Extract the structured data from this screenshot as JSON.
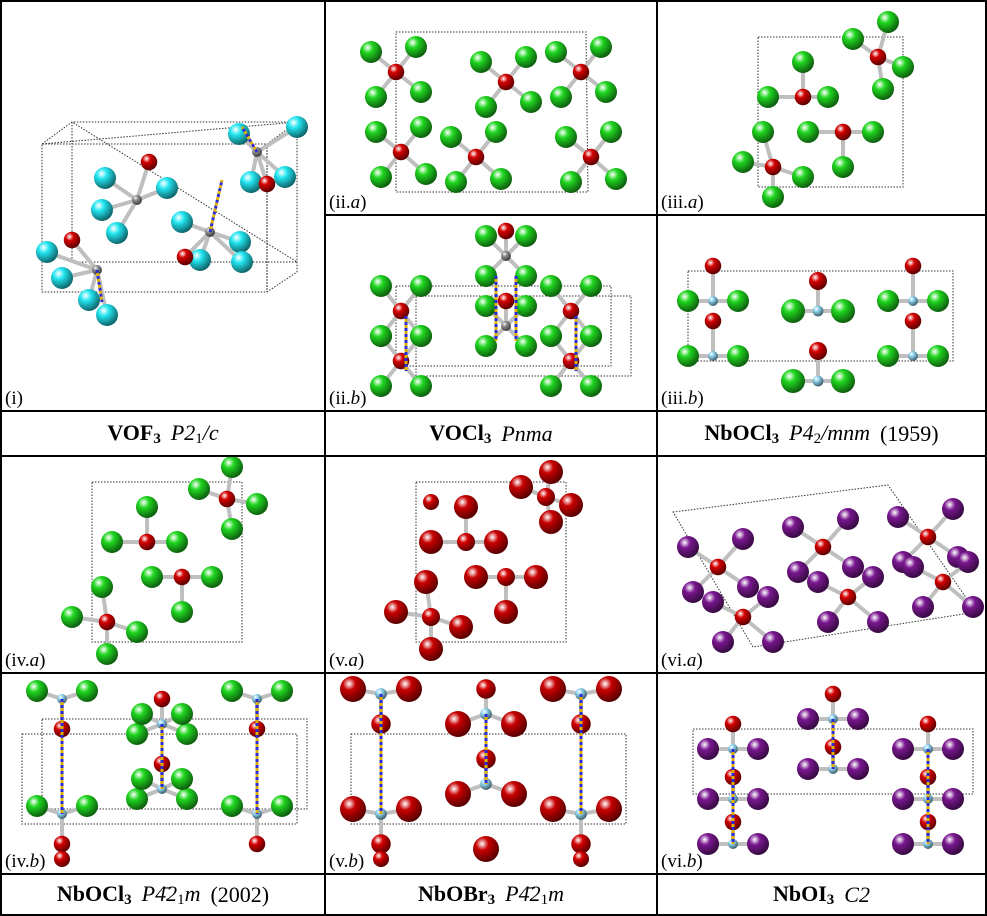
{
  "panels": {
    "i": {
      "label": "(i)",
      "base": "i"
    },
    "ii_a": {
      "label": "(ii.a)",
      "base": "ii.",
      "sub": "a"
    },
    "iii_a": {
      "label": "(iii.a)",
      "base": "iii.",
      "sub": "a"
    },
    "ii_b": {
      "label": "(ii.b)",
      "base": "ii.",
      "sub": "b"
    },
    "iii_b": {
      "label": "(iii.b)",
      "base": "iii.",
      "sub": "b"
    },
    "iv_a": {
      "label": "(iv.a)",
      "base": "iv.",
      "sub": "a"
    },
    "v_a": {
      "label": "(v.a)",
      "base": "v.",
      "sub": "a"
    },
    "vi_a": {
      "label": "(vi.a)",
      "base": "vi.",
      "sub": "a"
    },
    "iv_b": {
      "label": "(iv.b)",
      "base": "iv.",
      "sub": "b"
    },
    "v_b": {
      "label": "(v.b)",
      "base": "v.",
      "sub": "b"
    },
    "vi_b": {
      "label": "(vi.b)",
      "base": "vi.",
      "sub": "b"
    }
  },
  "captions": {
    "c1": {
      "formula": "VOF",
      "subscript": "3",
      "space_group": "P2",
      "sg_sub": "1",
      "sg_rest": "/c",
      "year": ""
    },
    "c2": {
      "formula": "VOCl",
      "subscript": "3",
      "space_group": "Pnma",
      "sg_sub": "",
      "sg_rest": "",
      "year": ""
    },
    "c3": {
      "formula": "NbOCl",
      "subscript": "3",
      "space_group": "P4",
      "sg_sub": "2",
      "sg_rest": "/mnm",
      "year": "(1959)"
    },
    "c4": {
      "formula": "NbOCl",
      "subscript": "3",
      "space_group": "P4̄2",
      "sg_sub": "1",
      "sg_rest": "m",
      "year": "(2002)"
    },
    "c5": {
      "formula": "NbOBr",
      "subscript": "3",
      "space_group": "P4̄2",
      "sg_sub": "1",
      "sg_rest": "m",
      "year": ""
    },
    "c6": {
      "formula": "NbOI",
      "subscript": "3",
      "space_group": "C2",
      "sg_sub": "",
      "sg_rest": "",
      "year": ""
    }
  },
  "colors": {
    "fluorine": "#22e5f0",
    "oxygen": "#d40000",
    "chlorine": "#1fd61f",
    "bromine": "#c80000",
    "iodine": "#7a1790",
    "vanadium": "#8c8c8c",
    "niobium": "#8fd3ee",
    "bond": "#bfbfbf",
    "dashed_bond": "#2b2bd6",
    "cell_edge": "#333333"
  },
  "atom_legend_icons": [
    "sphere-atom-icon"
  ]
}
